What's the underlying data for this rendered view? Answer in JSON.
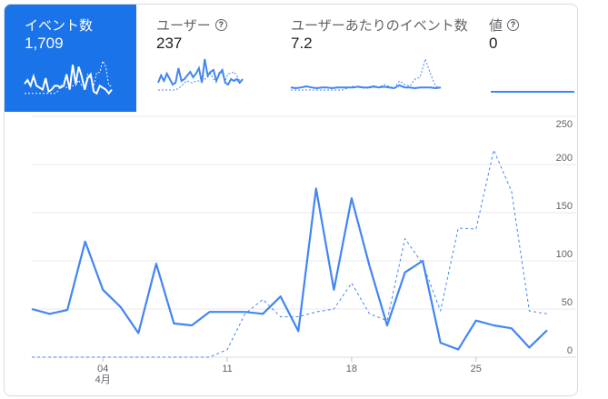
{
  "tabs": [
    {
      "label": "イベント数",
      "value": "1,709",
      "help": false,
      "active": true
    },
    {
      "label": "ユーザー",
      "value": "237",
      "help": true,
      "active": false
    },
    {
      "label": "ユーザーあたりのイベント数",
      "value": "7.2",
      "help": false,
      "active": false
    },
    {
      "label": "値",
      "value": "0",
      "help": true,
      "active": false
    }
  ],
  "help_glyph": "?",
  "colors": {
    "accent": "#1a73e8",
    "line": "#4285f4",
    "grid": "#e8eaed",
    "text": "#5f6368"
  },
  "chart_data": {
    "type": "line",
    "x_start": "03-31",
    "x_ticks": [
      {
        "index": 4,
        "label": "04",
        "sublabel": "4月"
      },
      {
        "index": 11,
        "label": "11"
      },
      {
        "index": 18,
        "label": "18"
      },
      {
        "index": 25,
        "label": "25"
      }
    ],
    "y_ticks": [
      0,
      50,
      100,
      150,
      200,
      250
    ],
    "ylim": [
      0,
      250
    ],
    "y_axis_side": "right",
    "grid": true,
    "series": [
      {
        "style": "solid",
        "values": [
          50,
          45,
          49,
          120,
          70,
          52,
          25,
          97,
          35,
          33,
          47,
          47,
          47,
          45,
          63,
          27,
          175,
          70,
          165,
          95,
          33,
          88,
          100,
          15,
          8,
          38,
          33,
          30,
          10,
          28
        ]
      },
      {
        "style": "dashed",
        "values": [
          0,
          0,
          0,
          0,
          0,
          0,
          0,
          0,
          0,
          0,
          0,
          8,
          45,
          60,
          42,
          42,
          47,
          50,
          77,
          45,
          38,
          123,
          97,
          48,
          134,
          133,
          215,
          172,
          48,
          45
        ]
      }
    ]
  },
  "sparklines": [
    {
      "solid": [
        0.35,
        0.45,
        0.3,
        0.55,
        0.3,
        0.25,
        0.2,
        0.5,
        0.15,
        0.2,
        0.3,
        0.3,
        0.25,
        0.3,
        0.6,
        0.2,
        0.85,
        0.35,
        0.8,
        0.55,
        0.2,
        0.5,
        0.6,
        0.15,
        0.1,
        0.3,
        0.25,
        0.2,
        0.1,
        0.2
      ],
      "dashed": [
        0.1,
        0.1,
        0.1,
        0.1,
        0.1,
        0.1,
        0.1,
        0.1,
        0.1,
        0.1,
        0.1,
        0.15,
        0.3,
        0.35,
        0.25,
        0.25,
        0.3,
        0.3,
        0.45,
        0.3,
        0.25,
        0.6,
        0.5,
        0.3,
        0.65,
        0.65,
        0.95,
        0.8,
        0.3,
        0.3
      ]
    },
    {
      "solid": [
        0.3,
        0.5,
        0.35,
        0.55,
        0.4,
        0.25,
        0.3,
        0.7,
        0.35,
        0.4,
        0.5,
        0.6,
        0.45,
        0.55,
        0.7,
        0.3,
        0.95,
        0.5,
        0.6,
        0.65,
        0.35,
        0.55,
        0.65,
        0.3,
        0.25,
        0.4,
        0.35,
        0.4,
        0.3,
        0.4
      ],
      "dashed": [
        0.1,
        0.1,
        0.1,
        0.1,
        0.1,
        0.1,
        0.1,
        0.15,
        0.2,
        0.3,
        0.35,
        0.3,
        0.3,
        0.35,
        0.35,
        0.35,
        0.4,
        0.45,
        0.55,
        0.4,
        0.35,
        0.6,
        0.55,
        0.35,
        0.55,
        0.55,
        0.6,
        0.5,
        0.35,
        0.35
      ]
    },
    {
      "solid": [
        0.12,
        0.1,
        0.12,
        0.15,
        0.12,
        0.1,
        0.12,
        0.12,
        0.1,
        0.12,
        0.12,
        0.12,
        0.12,
        0.14,
        0.12,
        0.12,
        0.15,
        0.12,
        0.14,
        0.12,
        0.1,
        0.18,
        0.12,
        0.12,
        0.1,
        0.12,
        0.12,
        0.12,
        0.1,
        0.12
      ],
      "dashed": [
        0.05,
        0.05,
        0.05,
        0.05,
        0.05,
        0.05,
        0.05,
        0.05,
        0.05,
        0.05,
        0.05,
        0.1,
        0.15,
        0.12,
        0.1,
        0.1,
        0.12,
        0.12,
        0.2,
        0.15,
        0.1,
        0.3,
        0.2,
        0.15,
        0.35,
        0.4,
        0.9,
        0.5,
        0.15,
        0.12
      ]
    },
    {
      "solid": [
        0,
        0,
        0,
        0,
        0,
        0,
        0,
        0,
        0,
        0,
        0,
        0,
        0,
        0,
        0,
        0,
        0,
        0,
        0,
        0,
        0,
        0,
        0,
        0,
        0,
        0,
        0,
        0,
        0,
        0
      ],
      "dashed": []
    }
  ]
}
